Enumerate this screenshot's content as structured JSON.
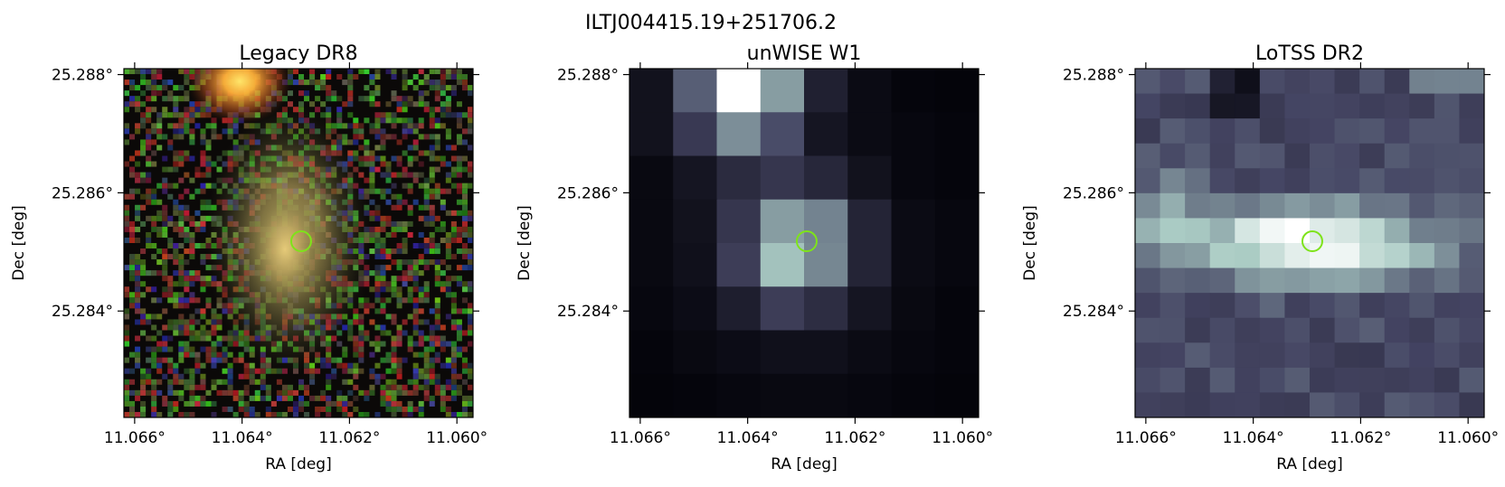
{
  "figure": {
    "suptitle": "ILTJ004415.19+251706.2",
    "marker_color": "#7ee31a",
    "marker_ra": 11.0629,
    "marker_dec": 25.28518
  },
  "axes": {
    "ra_min": 11.0662,
    "ra_max": 11.0597,
    "dec_min": 25.2822,
    "dec_max": 25.2881,
    "xticks": [
      11.066,
      11.064,
      11.062,
      11.06
    ],
    "yticks": [
      25.284,
      25.286,
      25.288
    ]
  },
  "panels": [
    {
      "name": "legacy",
      "title": "Legacy DR8",
      "xlabel": "RA [deg]",
      "ylabel": "Dec [deg]",
      "xtick_labels": [
        "11.066°",
        "11.064°",
        "11.062°",
        "11.060°"
      ],
      "ytick_labels": [
        "25.284°",
        "25.286°",
        "25.288°"
      ],
      "image_type": "optical-rgb-cutout"
    },
    {
      "name": "unwise",
      "title": "unWISE W1",
      "xlabel": "RA [deg]",
      "ylabel": "Dec [deg]",
      "xtick_labels": [
        "11.066°",
        "11.064°",
        "11.062°",
        "11.060°"
      ],
      "ytick_labels": [
        "25.284°",
        "25.286°",
        "25.288°"
      ],
      "image_type": "infrared-bone-cmap"
    },
    {
      "name": "lotss",
      "title": "LoTSS DR2",
      "xlabel": "RA [deg]",
      "ylabel": "Dec [deg]",
      "xtick_labels": [
        "11.066°",
        "11.064°",
        "11.062°",
        "11.060°"
      ],
      "ytick_labels": [
        "25.284°",
        "25.286°",
        "25.288°"
      ],
      "image_type": "radio-bone-cmap"
    }
  ]
}
